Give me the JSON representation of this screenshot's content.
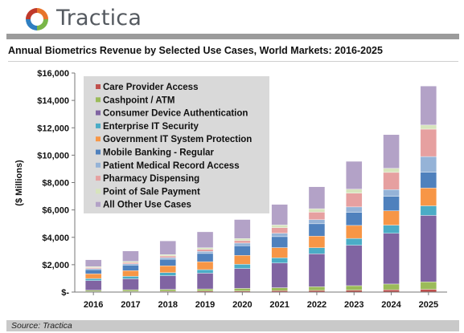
{
  "header": {
    "brand_name": "Tractica"
  },
  "colors": {
    "logo_orange": "#e8742b",
    "logo_green": "#7ab648",
    "logo_blue": "#2f7fc1",
    "logo_red": "#c0392b",
    "header_bar": "#9b9b9b",
    "footer_bar": "#c9c9c9",
    "legend_bg": "#d9d9d9"
  },
  "footer": {
    "source": "Source: Tractica"
  },
  "chart_data": {
    "type": "bar",
    "stacked": true,
    "title": "Annual Biometrics Revenue by Selected Use Cases, World Markets: 2016-2025",
    "ylabel": "($ Millions)",
    "xlabel": "",
    "ylim": [
      0,
      16000
    ],
    "yticks": [
      0,
      2000,
      4000,
      6000,
      8000,
      10000,
      12000,
      14000,
      16000
    ],
    "ytick_labels": [
      "$-",
      "$2,000",
      "$4,000",
      "$6,000",
      "$8,000",
      "$10,000",
      "$12,000",
      "$14,000",
      "$16,000"
    ],
    "grid": false,
    "legend_position": "top-left",
    "categories": [
      "2016",
      "2017",
      "2018",
      "2019",
      "2020",
      "2021",
      "2022",
      "2023",
      "2024",
      "2025"
    ],
    "series": [
      {
        "name": "Care Provider Access",
        "color": "#c0504d",
        "values": [
          40,
          50,
          60,
          70,
          80,
          100,
          120,
          140,
          170,
          200
        ]
      },
      {
        "name": "Cashpoint / ATM",
        "color": "#9bbb59",
        "values": [
          100,
          120,
          140,
          160,
          190,
          220,
          270,
          330,
          420,
          550
        ]
      },
      {
        "name": "Consumer Device Authentication",
        "color": "#8064a2",
        "values": [
          700,
          800,
          1000,
          1150,
          1450,
          1800,
          2400,
          2950,
          3700,
          4850
        ]
      },
      {
        "name": "Enterprise IT Security",
        "color": "#4bacc6",
        "values": [
          150,
          180,
          220,
          260,
          310,
          380,
          450,
          500,
          600,
          700
        ]
      },
      {
        "name": "Government IT System Protection",
        "color": "#f79646",
        "values": [
          350,
          420,
          500,
          580,
          650,
          750,
          850,
          950,
          1050,
          1300
        ]
      },
      {
        "name": "Mobile Banking - Regular",
        "color": "#4f81bd",
        "values": [
          300,
          400,
          480,
          600,
          700,
          800,
          900,
          950,
          1050,
          1150
        ]
      },
      {
        "name": "Patient Medical Record Access",
        "color": "#95b3d7",
        "values": [
          70,
          90,
          120,
          150,
          200,
          250,
          300,
          400,
          500,
          1150
        ]
      },
      {
        "name": "Pharmacy Dispensing",
        "color": "#e6a0a0",
        "values": [
          80,
          100,
          120,
          150,
          180,
          400,
          550,
          1000,
          1250,
          2000
        ]
      },
      {
        "name": "Point of Sale Payment",
        "color": "#d7e4bd",
        "values": [
          70,
          80,
          100,
          120,
          150,
          200,
          250,
          300,
          300,
          300
        ]
      },
      {
        "name": "All Other Use Cases",
        "color": "#b3a2c7",
        "values": [
          500,
          760,
          1000,
          1160,
          1390,
          1500,
          1600,
          2030,
          2460,
          2850
        ]
      }
    ]
  }
}
